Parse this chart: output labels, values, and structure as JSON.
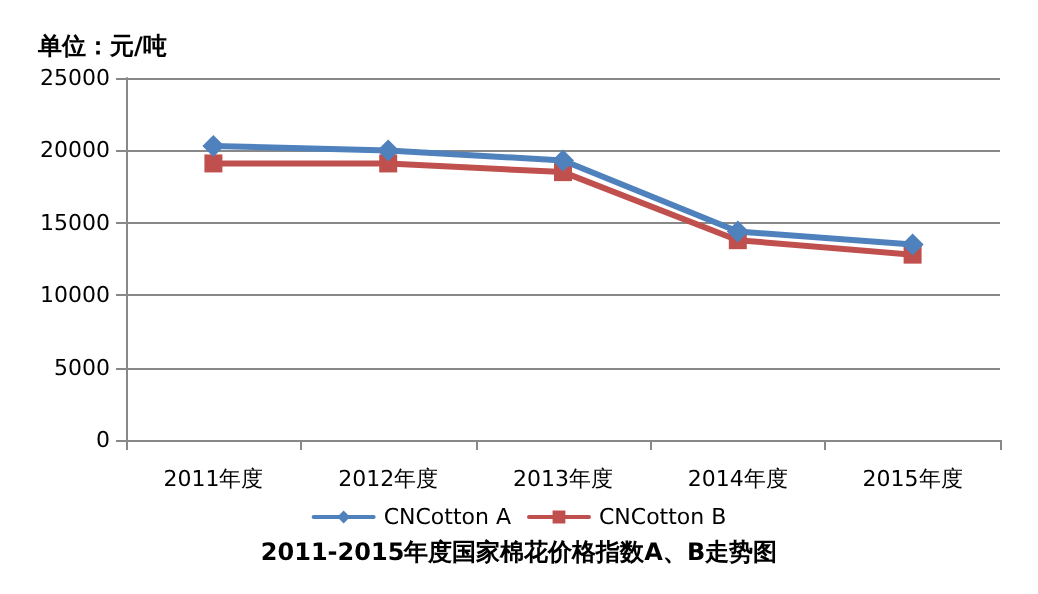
{
  "chart_data": {
    "type": "line",
    "title": "2011-2015年度国家棉花价格指数A、B走势图",
    "ylabel": "单位：元/吨",
    "categories": [
      "2011年度",
      "2012年度",
      "2013年度",
      "2014年度",
      "2015年度"
    ],
    "series": [
      {
        "name": "CNCotton A",
        "color": "#4f81bd",
        "marker": "diamond",
        "values": [
          20300,
          20000,
          19300,
          14400,
          13500
        ]
      },
      {
        "name": "CNCotton B",
        "color": "#c0504d",
        "marker": "square",
        "values": [
          19100,
          19100,
          18500,
          13800,
          12800
        ]
      }
    ],
    "ylim": [
      0,
      25000
    ],
    "yticks": [
      0,
      5000,
      10000,
      15000,
      20000,
      25000
    ],
    "grid": "y",
    "legend": "bottom",
    "line_style": "solid"
  }
}
